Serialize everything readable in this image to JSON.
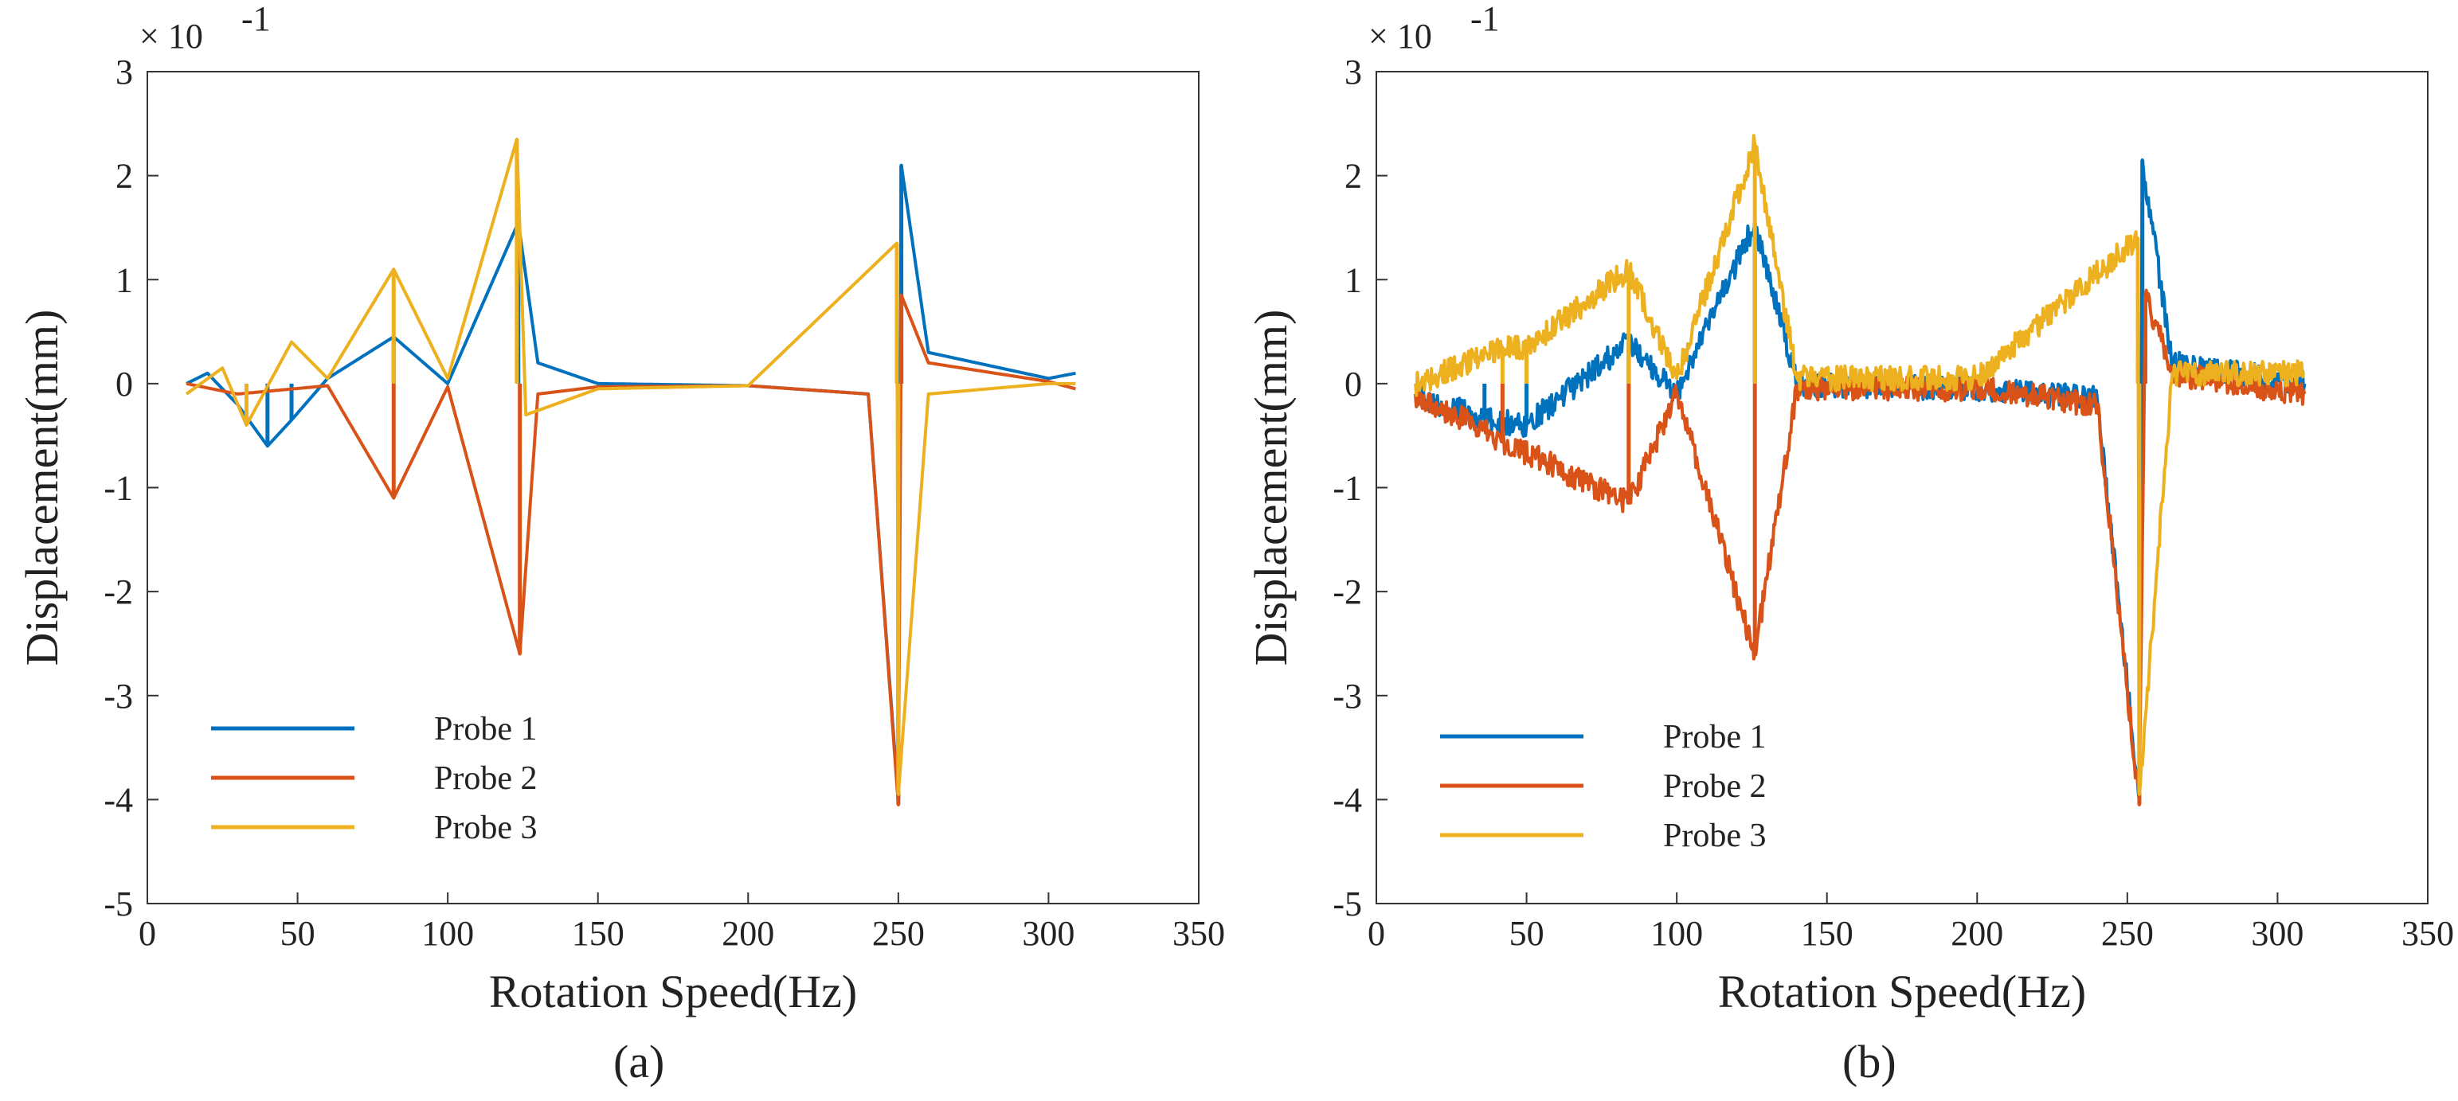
{
  "chart_data": [
    {
      "type": "line",
      "panel_label": "(a)",
      "xlabel": "Rotation Speed(Hz)",
      "ylabel": "Displacement(mm)",
      "y_exponent_base": "× 10",
      "y_exponent_power": "-1",
      "xlim": [
        0,
        350
      ],
      "ylim": [
        -5,
        3
      ],
      "xticks": [
        "0",
        "50",
        "100",
        "150",
        "200",
        "250",
        "300",
        "350"
      ],
      "yticks": [
        "-5",
        "-4",
        "-3",
        "-2",
        "-1",
        "0",
        "1",
        "2",
        "3"
      ],
      "grid": false,
      "legend_position": "lower-left",
      "noise_amplitude": 0.0,
      "series": [
        {
          "name": "Probe 1",
          "color": "#0072BD",
          "resonances": [
            {
              "x": 40,
              "y": -0.6
            },
            {
              "x": 48,
              "y": -0.35
            },
            {
              "x": 82,
              "y": 0.45
            },
            {
              "x": 123.5,
              "y": 1.55
            },
            {
              "x": 250,
              "y": -4.0
            },
            {
              "x": 251,
              "y": 2.1
            }
          ],
          "points": [
            [
              13,
              0.0
            ],
            [
              20,
              0.1
            ],
            [
              30,
              -0.2
            ],
            [
              40,
              -0.6
            ],
            [
              48,
              -0.35
            ],
            [
              60,
              0.05
            ],
            [
              82,
              0.45
            ],
            [
              100,
              0.0
            ],
            [
              123.5,
              1.55
            ],
            [
              130,
              0.2
            ],
            [
              150,
              0.0
            ],
            [
              200,
              -0.02
            ],
            [
              240,
              -0.1
            ],
            [
              250,
              -4.0
            ],
            [
              251,
              2.1
            ],
            [
              260,
              0.3
            ],
            [
              300,
              0.05
            ],
            [
              309,
              0.1
            ]
          ]
        },
        {
          "name": "Probe 2",
          "color": "#D95319",
          "resonances": [
            {
              "x": 82,
              "y": -1.1
            },
            {
              "x": 124,
              "y": -2.6
            },
            {
              "x": 250,
              "y": -4.05
            },
            {
              "x": 251,
              "y": 0.85
            }
          ],
          "points": [
            [
              13,
              0.0
            ],
            [
              30,
              -0.1
            ],
            [
              60,
              -0.02
            ],
            [
              82,
              -1.1
            ],
            [
              100,
              -0.03
            ],
            [
              124,
              -2.6
            ],
            [
              130,
              -0.1
            ],
            [
              150,
              -0.03
            ],
            [
              200,
              -0.02
            ],
            [
              240,
              -0.1
            ],
            [
              250,
              -4.05
            ],
            [
              251,
              0.85
            ],
            [
              260,
              0.2
            ],
            [
              300,
              0.02
            ],
            [
              309,
              -0.05
            ]
          ]
        },
        {
          "name": "Probe 3",
          "color": "#EDB120",
          "resonances": [
            {
              "x": 33,
              "y": -0.4
            },
            {
              "x": 82,
              "y": 1.1
            },
            {
              "x": 123,
              "y": 2.35
            },
            {
              "x": 249.5,
              "y": 1.35
            },
            {
              "x": 250,
              "y": -3.95
            }
          ],
          "points": [
            [
              13,
              -0.1
            ],
            [
              25,
              0.15
            ],
            [
              33,
              -0.4
            ],
            [
              48,
              0.4
            ],
            [
              60,
              0.05
            ],
            [
              82,
              1.1
            ],
            [
              100,
              0.05
            ],
            [
              123,
              2.35
            ],
            [
              126,
              -0.3
            ],
            [
              150,
              -0.05
            ],
            [
              200,
              -0.02
            ],
            [
              249.5,
              1.35
            ],
            [
              250,
              -3.95
            ],
            [
              260,
              -0.1
            ],
            [
              300,
              0.0
            ],
            [
              309,
              0.0
            ]
          ]
        }
      ]
    },
    {
      "type": "line",
      "panel_label": "(b)",
      "xlabel": "Rotation Speed(Hz)",
      "ylabel": "Displacement(mm)",
      "y_exponent_base": "× 10",
      "y_exponent_power": "-1",
      "xlim": [
        0,
        350
      ],
      "ylim": [
        -5,
        3
      ],
      "xticks": [
        "0",
        "50",
        "100",
        "150",
        "200",
        "250",
        "300",
        "350"
      ],
      "yticks": [
        "-5",
        "-4",
        "-3",
        "-2",
        "-1",
        "0",
        "1",
        "2",
        "3"
      ],
      "grid": false,
      "legend_position": "lower-left",
      "noise_amplitude": 0.12,
      "series": [
        {
          "name": "Probe 1",
          "color": "#0072BD",
          "resonances": [
            {
              "x": 36,
              "y": -0.35
            },
            {
              "x": 50,
              "y": -0.4
            },
            {
              "x": 84,
              "y": 0.4
            },
            {
              "x": 126,
              "y": 1.55
            },
            {
              "x": 254,
              "y": -4.0
            },
            {
              "x": 255,
              "y": 2.15
            }
          ],
          "points": [
            [
              13,
              -0.1
            ],
            [
              36,
              -0.35
            ],
            [
              50,
              -0.4
            ],
            [
              84,
              0.4
            ],
            [
              100,
              -0.1
            ],
            [
              126,
              1.55
            ],
            [
              140,
              0.0
            ],
            [
              200,
              -0.05
            ],
            [
              240,
              -0.15
            ],
            [
              254,
              -4.0
            ],
            [
              255,
              2.15
            ],
            [
              265,
              0.2
            ],
            [
              309,
              0.0
            ]
          ]
        },
        {
          "name": "Probe 2",
          "color": "#D95319",
          "resonances": [
            {
              "x": 42,
              "y": -0.55
            },
            {
              "x": 84,
              "y": -1.15
            },
            {
              "x": 126,
              "y": -2.6
            },
            {
              "x": 254,
              "y": -4.05
            },
            {
              "x": 256,
              "y": 0.85
            }
          ],
          "points": [
            [
              13,
              -0.1
            ],
            [
              42,
              -0.55
            ],
            [
              84,
              -1.15
            ],
            [
              100,
              -0.1
            ],
            [
              126,
              -2.6
            ],
            [
              140,
              -0.05
            ],
            [
              200,
              -0.05
            ],
            [
              240,
              -0.2
            ],
            [
              254,
              -4.05
            ],
            [
              256,
              0.85
            ],
            [
              265,
              0.1
            ],
            [
              309,
              -0.1
            ]
          ]
        },
        {
          "name": "Probe 3",
          "color": "#EDB120",
          "resonances": [
            {
              "x": 42,
              "y": 0.35
            },
            {
              "x": 50,
              "y": 0.35
            },
            {
              "x": 84,
              "y": 1.1
            },
            {
              "x": 126,
              "y": 2.3
            },
            {
              "x": 253.5,
              "y": 1.4
            },
            {
              "x": 254,
              "y": -3.95
            }
          ],
          "points": [
            [
              13,
              0.0
            ],
            [
              42,
              0.35
            ],
            [
              50,
              0.35
            ],
            [
              84,
              1.1
            ],
            [
              100,
              0.05
            ],
            [
              126,
              2.3
            ],
            [
              140,
              0.05
            ],
            [
              200,
              0.05
            ],
            [
              253.5,
              1.4
            ],
            [
              254,
              -3.95
            ],
            [
              265,
              0.1
            ],
            [
              309,
              0.1
            ]
          ]
        }
      ]
    }
  ]
}
